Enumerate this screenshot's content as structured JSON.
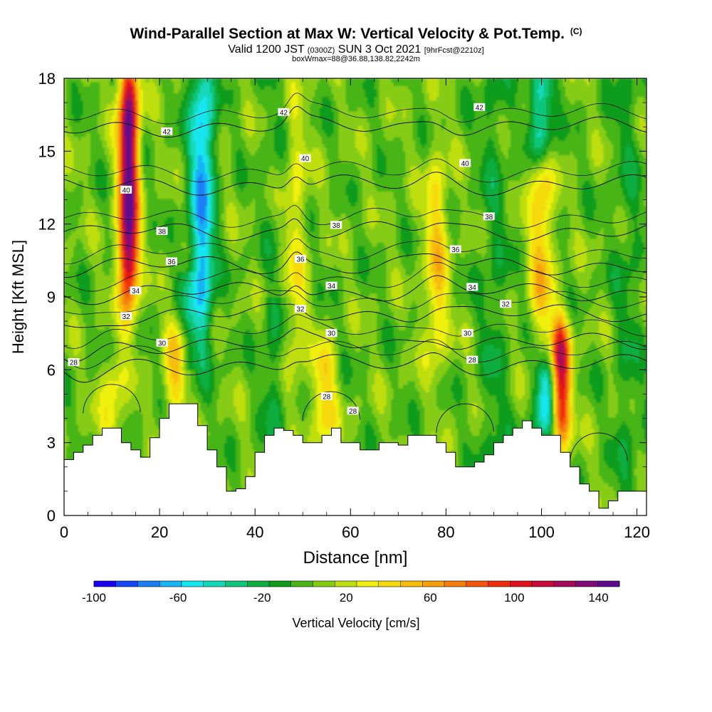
{
  "header": {
    "title": "Wind-Parallel Section at Max W: Vertical Velocity & Pot.Temp.",
    "title_mark": "(C)",
    "subtitle_a": "Valid 1200 JST",
    "subtitle_b": "(0300Z)",
    "subtitle_c": "SUN 3 Oct 2021",
    "subtitle_d": "[9hrFcst@2210z]",
    "subtitle_line3": "boxWmax=88@36.88,138.82,2242m"
  },
  "chart_data": {
    "type": "heatmap",
    "xlabel": "Distance [nm]",
    "ylabel": "Height [Kft MSL]",
    "xlim": [
      0,
      122
    ],
    "ylim": [
      0,
      18
    ],
    "x_ticks": [
      0,
      20,
      40,
      60,
      80,
      100,
      120
    ],
    "y_ticks": [
      0,
      3,
      6,
      9,
      12,
      15,
      18
    ],
    "grid": false,
    "colorbar": {
      "label": "Vertical Velocity [cm/s]",
      "min": -100,
      "max": 150,
      "tick_labels": [
        -100,
        -60,
        -20,
        20,
        60,
        100,
        140
      ],
      "colors": [
        "#1a00f0",
        "#1446f5",
        "#1c7ff5",
        "#18b4f5",
        "#14e6f0",
        "#12d8b8",
        "#10c67c",
        "#0ead3f",
        "#0e9c1e",
        "#47b514",
        "#86cc12",
        "#bede10",
        "#f0f010",
        "#f5da0c",
        "#f5bd0a",
        "#f59f0a",
        "#f57d0a",
        "#f5560a",
        "#f02d0a",
        "#e0121c",
        "#c80a3c",
        "#a50a5a",
        "#820a78",
        "#5f0a8c"
      ]
    },
    "vertical_velocity_features": [
      {
        "x_center": 13.5,
        "z_bottom": 9.5,
        "z_top": 18,
        "w_peak": 145,
        "kind": "updraft"
      },
      {
        "x_center": 10,
        "z_bottom": 3.5,
        "z_top": 6,
        "w_peak": 30,
        "kind": "updraft"
      },
      {
        "x_center": 23.5,
        "z_bottom": 4.5,
        "z_top": 7.5,
        "w_peak": 40,
        "kind": "updraft"
      },
      {
        "x_center": 29,
        "z_bottom": 8,
        "z_top": 18,
        "w_peak": -70,
        "kind": "downdraft"
      },
      {
        "x_center": 48.5,
        "z_bottom": 6,
        "z_top": 16,
        "w_peak": 25,
        "kind": "updraft"
      },
      {
        "x_center": 54.5,
        "z_bottom": 3.5,
        "z_top": 6.5,
        "w_peak": 40,
        "kind": "updraft"
      },
      {
        "x_center": 78,
        "z_bottom": 7,
        "z_top": 14,
        "w_peak": 40,
        "kind": "updraft"
      },
      {
        "x_center": 100,
        "z_bottom": 8,
        "z_top": 15,
        "w_peak": 45,
        "kind": "updraft"
      },
      {
        "x_center": 104,
        "z_bottom": 3.5,
        "z_top": 7.5,
        "w_peak": 110,
        "kind": "updraft"
      },
      {
        "x_center": 101,
        "z_bottom": 3.5,
        "z_top": 6,
        "w_peak": -60,
        "kind": "downdraft"
      },
      {
        "x_center": 100,
        "z_bottom": 15,
        "z_top": 18,
        "w_peak": -60,
        "kind": "downdraft"
      }
    ],
    "theta_isentropes": [
      {
        "value": 42,
        "base_height": 16.0,
        "labels": [
          [
            21.5,
            15.8
          ],
          [
            46,
            16.6
          ],
          [
            87,
            16.8
          ]
        ]
      },
      {
        "value": 40,
        "base_height": 13.6,
        "labels": [
          [
            13,
            13.4
          ],
          [
            50.5,
            14.7
          ],
          [
            84,
            14.5
          ]
        ]
      },
      {
        "value": 38,
        "base_height": 11.7,
        "labels": [
          [
            20.5,
            11.7
          ],
          [
            57,
            11.95
          ],
          [
            89,
            12.3
          ]
        ]
      },
      {
        "value": 36,
        "base_height": 10.3,
        "labels": [
          [
            22.5,
            10.45
          ],
          [
            49.5,
            10.55
          ],
          [
            82,
            10.95
          ]
        ]
      },
      {
        "value": 34,
        "base_height": 9.2,
        "labels": [
          [
            15,
            9.25
          ],
          [
            56,
            9.45
          ],
          [
            85.5,
            9.4
          ]
        ]
      },
      {
        "value": 32,
        "base_height": 8.3,
        "labels": [
          [
            13,
            8.2
          ],
          [
            49.5,
            8.5
          ],
          [
            92.5,
            8.7
          ]
        ]
      },
      {
        "value": 30,
        "base_height": 7.1,
        "labels": [
          [
            20.5,
            7.1
          ],
          [
            56,
            7.5
          ],
          [
            84.5,
            7.5
          ]
        ]
      },
      {
        "value": 28,
        "base_height": 6.2,
        "labels": [
          [
            2,
            6.3
          ],
          [
            55,
            4.9
          ],
          [
            60.5,
            4.3
          ],
          [
            85.5,
            6.4
          ]
        ]
      }
    ],
    "terrain_profile": {
      "x": [
        0,
        2,
        4,
        6,
        8,
        10,
        12,
        14,
        16,
        18,
        20,
        22,
        24,
        26,
        28,
        30,
        32,
        34,
        36,
        38,
        40,
        42,
        44,
        46,
        48,
        50,
        52,
        54,
        56,
        58,
        60,
        62,
        64,
        66,
        68,
        70,
        72,
        74,
        76,
        78,
        80,
        82,
        84,
        86,
        88,
        90,
        92,
        94,
        96,
        98,
        100,
        102,
        104,
        106,
        108,
        110,
        112,
        114,
        116,
        118,
        120,
        122
      ],
      "height": [
        2.3,
        2.6,
        2.9,
        3.3,
        3.6,
        3.6,
        3.0,
        2.7,
        2.4,
        3.2,
        4.0,
        4.6,
        4.6,
        4.6,
        3.7,
        2.7,
        2.0,
        1.0,
        1.1,
        1.6,
        2.6,
        3.3,
        3.6,
        3.5,
        3.3,
        3.0,
        3.0,
        3.3,
        3.6,
        3.0,
        3.0,
        2.7,
        2.7,
        3.0,
        3.0,
        2.9,
        3.3,
        3.3,
        3.3,
        3.0,
        2.6,
        2.0,
        2.0,
        2.2,
        2.5,
        3.0,
        3.3,
        3.6,
        3.9,
        3.6,
        3.3,
        3.3,
        2.6,
        2.0,
        1.3,
        1.0,
        0.3,
        0.6,
        1.0,
        1.0,
        1.0,
        1.0
      ]
    }
  }
}
